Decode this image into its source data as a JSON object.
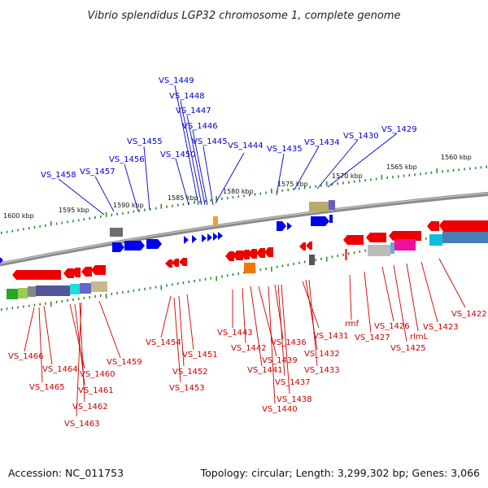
{
  "title": "Vibrio splendidus LGP32 chromosome 1, complete genome",
  "footer": {
    "accession": "Accession: NC_011753",
    "stats": "Topology: circular; Length: 3,299,302 bp; Genes: 3,066"
  },
  "colors": {
    "forward_label": "#0000cc",
    "reverse_label": "#cc0000",
    "backbone": "#8a8a8a",
    "tick_mark": "#2e8b2e"
  },
  "kbp_ticks": [
    "1600 kbp",
    "1595 kbp",
    "1590 kbp",
    "1585 kbp",
    "1580 kbp",
    "1575 kbp",
    "1570 kbp",
    "1565 kbp",
    "1560 kbp"
  ],
  "forward_labels": [
    "VS_1449",
    "VS_1448",
    "VS_1447",
    "VS_1446",
    "VS_1445",
    "VS_1444",
    "VS_1455",
    "VS_1450",
    "VS_1456",
    "VS_1457",
    "VS_1458",
    "VS_1435",
    "VS_1434",
    "VS_1430",
    "VS_1429"
  ],
  "reverse_labels": [
    "VS_1466",
    "VS_1464",
    "VS_1465",
    "VS_1460",
    "VS_1461",
    "VS_1462",
    "VS_1463",
    "VS_1459",
    "VS_1454",
    "VS_1451",
    "VS_1452",
    "VS_1453",
    "VS_1443",
    "VS_1442",
    "VS_1441",
    "VS_1439",
    "VS_1436",
    "VS_1437",
    "VS_1438",
    "VS_1440",
    "VS_1431",
    "VS_1432",
    "VS_1433",
    "rmf",
    "VS_1427",
    "VS_1426",
    "rlmL",
    "VS_1425",
    "VS_1423",
    "VS_1422"
  ]
}
